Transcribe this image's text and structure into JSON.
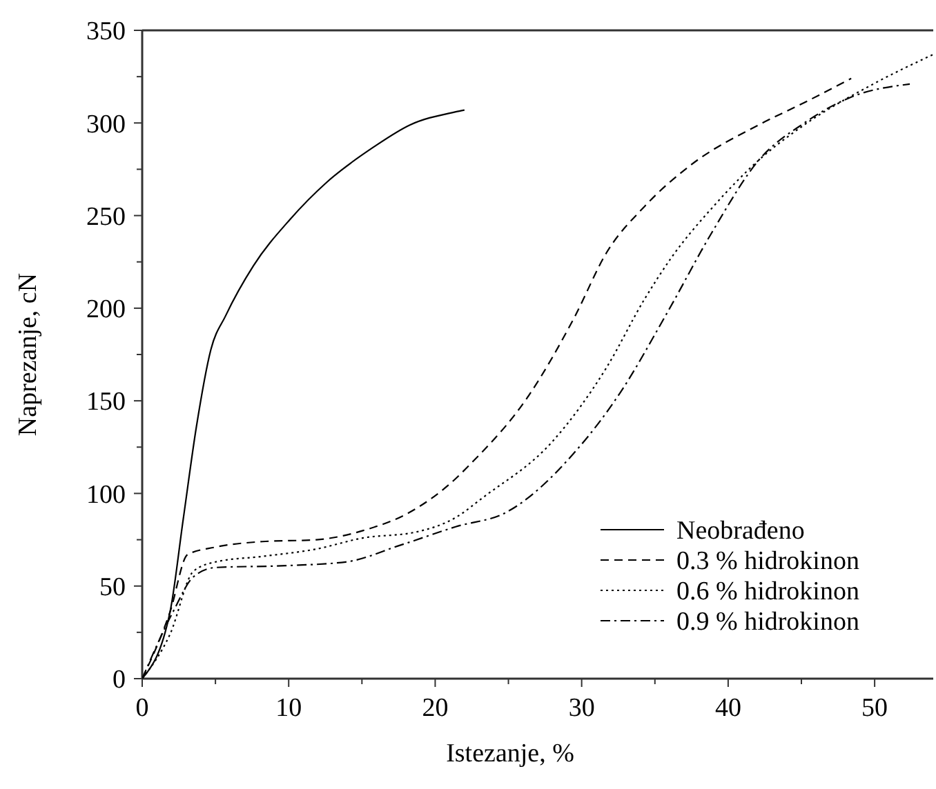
{
  "chart_data": {
    "type": "line",
    "xlabel": "Istezanje, %",
    "ylabel": "Naprezanje, cN",
    "xlim": [
      0,
      54
    ],
    "ylim": [
      0,
      350
    ],
    "xticks": [
      0,
      {
        "value": 5,
        "label": null
      },
      10,
      {
        "value": 15,
        "label": null
      },
      20,
      {
        "value": 25,
        "label": null
      },
      30,
      {
        "value": 35,
        "label": null
      },
      40,
      {
        "value": 45,
        "label": null
      },
      50
    ],
    "yticks": [
      0,
      {
        "value": 25,
        "label": null
      },
      50,
      {
        "value": 75,
        "label": null
      },
      100,
      {
        "value": 125,
        "label": null
      },
      150,
      {
        "value": 175,
        "label": null
      },
      200,
      {
        "value": 225,
        "label": null
      },
      250,
      {
        "value": 275,
        "label": null
      },
      300,
      {
        "value": 325,
        "label": null
      },
      350
    ],
    "grid": false,
    "legend": "bottom right",
    "marker": "none",
    "series": [
      {
        "name": "Neobrađeno",
        "color": "#000000",
        "line_style": "solid",
        "x": [
          0,
          1.9,
          2.8,
          3.7,
          4.7,
          5.7,
          7.6,
          10.1,
          12.6,
          15.8,
          18.3,
          21.4,
          22
        ],
        "values": [
          0,
          36,
          86,
          136,
          178,
          196,
          223,
          248,
          268,
          287,
          299,
          306,
          307
        ]
      },
      {
        "name": "0.3 % hidrokinon",
        "color": "#000000",
        "line_style": "dashed",
        "x": [
          0,
          1.9,
          3.1,
          5,
          8.2,
          11.9,
          15.1,
          18.3,
          21.4,
          22.3,
          26.4,
          29.5,
          31.7,
          34.3,
          37.4,
          42.1,
          45.2,
          48.4
        ],
        "values": [
          0,
          36,
          67,
          71,
          74,
          75,
          80,
          90,
          108,
          115,
          153,
          195,
          230,
          255,
          277,
          299,
          311,
          324
        ]
      },
      {
        "name": "0.6 % hidrokinon",
        "color": "#000000",
        "line_style": "dotted",
        "x": [
          0,
          1.9,
          3.5,
          5,
          8.2,
          11.9,
          15.1,
          18.6,
          21.4,
          23.3,
          28,
          31.7,
          34.3,
          36.1,
          39,
          42.1,
          45.2,
          49.9,
          54
        ],
        "values": [
          0,
          24,
          58,
          63,
          66,
          70,
          76,
          79,
          87,
          98,
          128,
          168,
          205,
          227,
          255,
          280,
          299,
          321,
          337
        ]
      },
      {
        "name": "0.9 % hidrokinon",
        "color": "#000000",
        "line_style": "dashdot",
        "x": [
          0,
          2.1,
          3.5,
          5,
          9.8,
          13.9,
          17.6,
          21.4,
          24.9,
          29.5,
          32.6,
          35.8,
          38.9,
          42.1,
          45.2,
          48.4,
          52.4
        ],
        "values": [
          0,
          36,
          55,
          60,
          61,
          63,
          72,
          82,
          90,
          122,
          154,
          197,
          241,
          280,
          300,
          314,
          321
        ]
      }
    ]
  }
}
